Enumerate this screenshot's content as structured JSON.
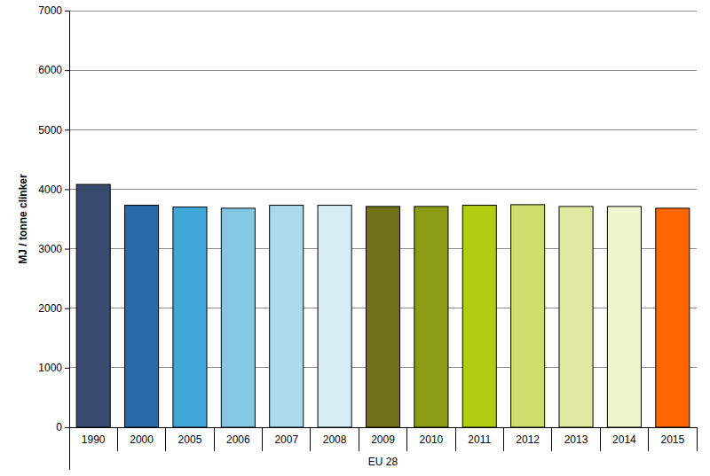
{
  "chart_data": {
    "type": "bar",
    "ylabel": "MJ / tonne clinker",
    "xlabel": "EU 28",
    "categories": [
      "1990",
      "2000",
      "2005",
      "2006",
      "2007",
      "2008",
      "2009",
      "2010",
      "2011",
      "2012",
      "2013",
      "2014",
      "2015"
    ],
    "values": [
      4080,
      3730,
      3700,
      3680,
      3730,
      3730,
      3710,
      3710,
      3730,
      3740,
      3710,
      3710,
      3680
    ],
    "colors": [
      "#394a6f",
      "#2a69a8",
      "#40a8d8",
      "#85c8e4",
      "#acd9ec",
      "#d6edf5",
      "#717019",
      "#8c9b14",
      "#b0cc13",
      "#cfdf6c",
      "#dfe9a0",
      "#eff5cc",
      "#ff6600"
    ],
    "ylim": [
      0,
      7000
    ],
    "yticks": [
      0,
      1000,
      2000,
      3000,
      4000,
      5000,
      6000,
      7000
    ],
    "grid": true
  }
}
